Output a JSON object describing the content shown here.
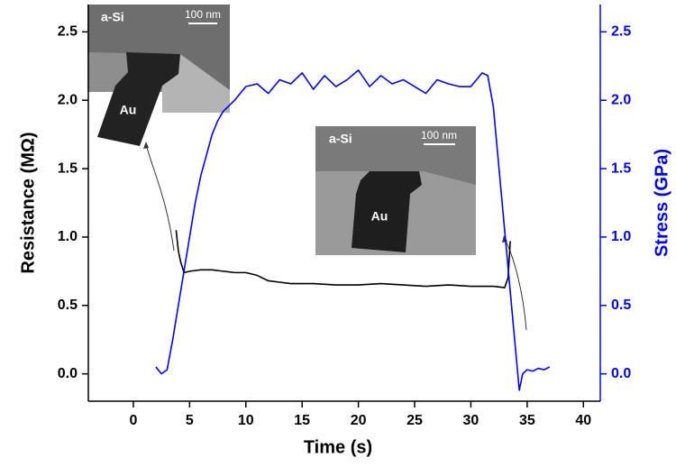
{
  "chart_data": {
    "type": "line",
    "xlabel": "Time (s)",
    "ylabel": "Resistance (MΩ)",
    "y2label": "Stress (GPa)",
    "xlim": [
      -4,
      41.5
    ],
    "ylim": [
      -0.2,
      2.7
    ],
    "y2lim": [
      -0.2,
      2.7
    ],
    "xticks": [
      0,
      5,
      10,
      15,
      20,
      25,
      30,
      35,
      40
    ],
    "yticks": [
      {
        "value": 0,
        "label": "0.0"
      },
      0.5,
      {
        "value": 1,
        "label": "1.0"
      },
      1.5,
      {
        "value": 2,
        "label": "2.0"
      },
      2.5
    ],
    "y2ticks": [
      {
        "value": 0,
        "label": "0.0"
      },
      0.5,
      {
        "value": 1,
        "label": "1.0"
      },
      1.5,
      {
        "value": 2,
        "label": "2.0"
      },
      2.5
    ],
    "y2color": "#0000ff",
    "series": [
      {
        "color": "#000000",
        "axis": "y",
        "x": [
          3.8,
          4.0,
          4.2,
          4.5,
          5,
          6,
          7,
          8,
          9,
          10,
          11,
          12,
          13,
          14,
          16,
          18,
          20,
          22,
          24,
          26,
          28,
          30,
          32,
          33,
          33.3,
          33.5
        ],
        "values": [
          1.05,
          0.9,
          0.82,
          0.74,
          0.75,
          0.76,
          0.76,
          0.75,
          0.74,
          0.74,
          0.72,
          0.68,
          0.67,
          0.66,
          0.66,
          0.65,
          0.65,
          0.66,
          0.65,
          0.64,
          0.65,
          0.64,
          0.64,
          0.63,
          0.7,
          0.97
        ]
      },
      {
        "color": "#0000ff",
        "axis": "y2",
        "x": [
          2,
          2.5,
          3,
          3.5,
          4,
          4.5,
          5,
          5.5,
          6,
          6.5,
          7,
          7.5,
          8,
          9,
          10,
          11,
          12,
          13,
          14,
          15,
          16,
          17,
          18,
          19,
          20,
          21,
          22,
          23,
          24,
          25,
          26,
          27,
          28,
          29,
          30,
          31,
          31.5,
          32,
          32.5,
          33,
          33.5,
          34,
          34.3,
          34.6,
          35,
          35.5,
          36,
          36.5,
          37
        ],
        "values": [
          0.05,
          0.0,
          0.03,
          0.25,
          0.5,
          0.75,
          1.0,
          1.25,
          1.45,
          1.6,
          1.75,
          1.85,
          1.92,
          2.0,
          2.1,
          2.12,
          2.05,
          2.15,
          2.12,
          2.2,
          2.08,
          2.18,
          2.1,
          2.15,
          2.22,
          2.1,
          2.18,
          2.12,
          2.15,
          2.1,
          2.05,
          2.15,
          2.12,
          2.1,
          2.1,
          2.2,
          2.18,
          1.95,
          1.5,
          1.05,
          0.6,
          0.15,
          -0.12,
          0.0,
          0.03,
          0.02,
          0.04,
          0.03,
          0.05
        ]
      }
    ],
    "annotations": [
      {
        "material": "a-Si",
        "scale": "100 nm",
        "wire": "Au"
      },
      {
        "material": "a-Si",
        "scale": "100 nm",
        "wire": "Au"
      }
    ]
  }
}
